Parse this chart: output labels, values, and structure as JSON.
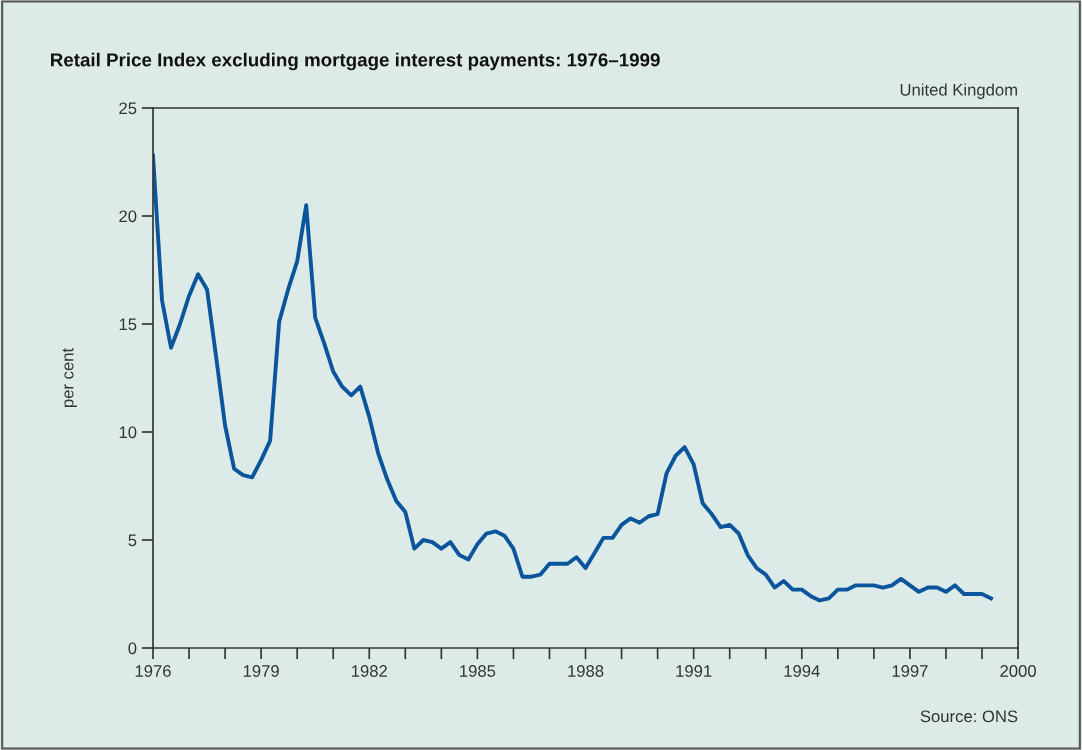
{
  "chart_data": {
    "type": "line",
    "title": "Retail Price Index excluding mortgage interest payments: 1976–1999",
    "ylabel": "per cent",
    "annotations": [
      "United Kingdom",
      "Source: ONS"
    ],
    "x": [
      1976,
      1976.25,
      1976.5,
      1976.75,
      1977,
      1977.25,
      1977.5,
      1977.75,
      1978,
      1978.25,
      1978.5,
      1978.75,
      1979,
      1979.25,
      1979.5,
      1979.75,
      1980,
      1980.25,
      1980.5,
      1980.75,
      1981,
      1981.25,
      1981.5,
      1981.75,
      1982,
      1982.25,
      1982.5,
      1982.75,
      1983,
      1983.25,
      1983.5,
      1983.75,
      1984,
      1984.25,
      1984.5,
      1984.75,
      1985,
      1985.25,
      1985.5,
      1985.75,
      1986,
      1986.25,
      1986.5,
      1986.75,
      1987,
      1987.25,
      1987.5,
      1987.75,
      1988,
      1988.25,
      1988.5,
      1988.75,
      1989,
      1989.25,
      1989.5,
      1989.75,
      1990,
      1990.25,
      1990.5,
      1990.75,
      1991,
      1991.25,
      1991.5,
      1991.75,
      1992,
      1992.25,
      1992.5,
      1992.75,
      1993,
      1993.25,
      1993.5,
      1993.75,
      1994,
      1994.25,
      1994.5,
      1994.75,
      1995,
      1995.25,
      1995.5,
      1995.75,
      1996,
      1996.25,
      1996.5,
      1996.75,
      1997,
      1997.25,
      1997.5,
      1997.75,
      1998,
      1998.25,
      1998.5,
      1998.75,
      1999,
      1999.25
    ],
    "series": [
      {
        "color": "#0a559c",
        "values": [
          22.8,
          16.1,
          13.9,
          15.0,
          16.3,
          17.3,
          16.6,
          13.5,
          10.3,
          8.3,
          8.0,
          7.9,
          8.7,
          9.6,
          15.1,
          16.6,
          17.9,
          20.5,
          15.3,
          14.1,
          12.8,
          12.1,
          11.7,
          12.1,
          10.7,
          9.0,
          7.8,
          6.8,
          6.3,
          4.6,
          5.0,
          4.9,
          4.6,
          4.9,
          4.3,
          4.1,
          4.8,
          5.3,
          5.4,
          5.2,
          4.6,
          3.3,
          3.3,
          3.4,
          3.9,
          3.9,
          3.9,
          4.2,
          3.7,
          4.4,
          5.1,
          5.1,
          5.7,
          6.0,
          5.8,
          6.1,
          6.2,
          8.1,
          8.9,
          9.3,
          8.5,
          6.7,
          6.2,
          5.6,
          5.7,
          5.3,
          4.3,
          3.7,
          3.4,
          2.8,
          3.1,
          2.7,
          2.7,
          2.4,
          2.2,
          2.3,
          2.7,
          2.7,
          2.9,
          2.9,
          2.9,
          2.8,
          2.9,
          3.2,
          2.9,
          2.6,
          2.8,
          2.8,
          2.6,
          2.9,
          2.5,
          2.5,
          2.5,
          2.3
        ]
      }
    ],
    "xlim": [
      1976,
      2000
    ],
    "ylim": [
      0,
      25
    ],
    "xticks": [
      1976,
      {
        "value": 1977,
        "label": null
      },
      {
        "value": 1978,
        "label": null
      },
      1979,
      {
        "value": 1980,
        "label": null
      },
      {
        "value": 1981,
        "label": null
      },
      1982,
      {
        "value": 1983,
        "label": null
      },
      {
        "value": 1984,
        "label": null
      },
      1985,
      {
        "value": 1986,
        "label": null
      },
      {
        "value": 1987,
        "label": null
      },
      1988,
      {
        "value": 1989,
        "label": null
      },
      {
        "value": 1990,
        "label": null
      },
      1991,
      {
        "value": 1992,
        "label": null
      },
      {
        "value": 1993,
        "label": null
      },
      1994,
      {
        "value": 1995,
        "label": null
      },
      {
        "value": 1996,
        "label": null
      },
      1997,
      {
        "value": 1998,
        "label": null
      },
      {
        "value": 1999,
        "label": null
      },
      2000
    ],
    "yticks": [
      0,
      5,
      10,
      15,
      20,
      25
    ],
    "grid": false,
    "legend": false,
    "marker": "none",
    "line_style": "solid"
  }
}
